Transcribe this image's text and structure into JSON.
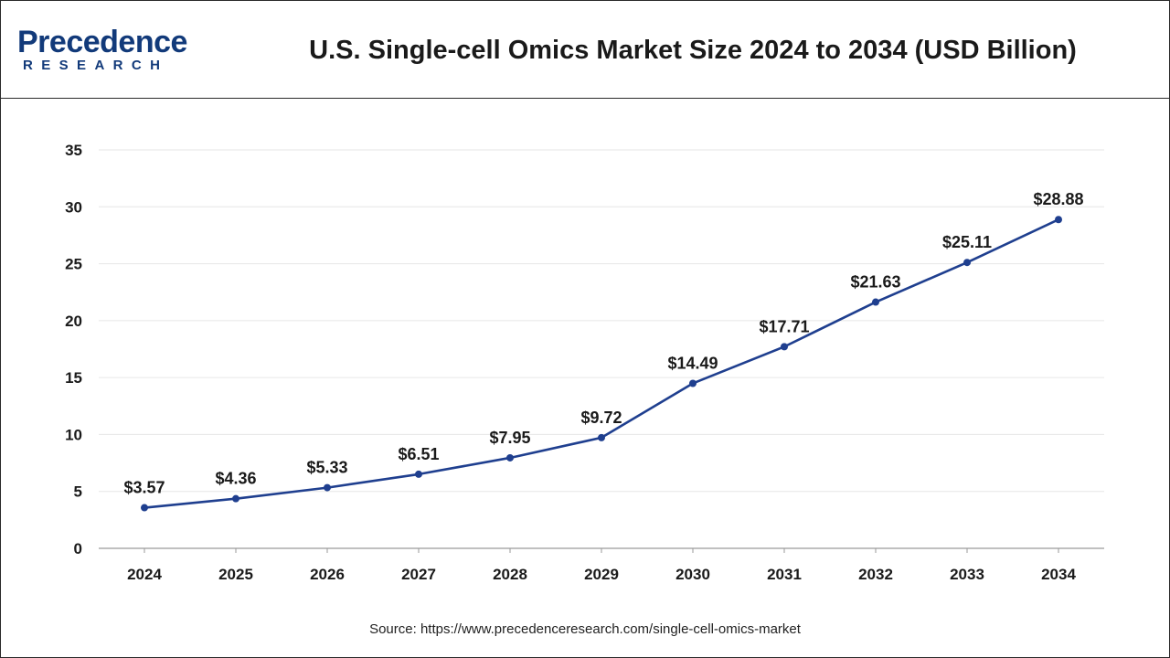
{
  "header": {
    "logo_word": "Precedence",
    "logo_sub": "RESEARCH",
    "title": "U.S. Single-cell Omics Market Size 2024 to 2034 (USD Billion)"
  },
  "source": "Source: https://www.precedenceresearch.com/single-cell-omics-market",
  "colors": {
    "line": "#1f3f8f",
    "brand": "#123a7a",
    "grid": "#e6e6e6",
    "axis": "#9a9a9a"
  },
  "chart_data": {
    "type": "line",
    "title": "U.S. Single-cell Omics Market Size 2024 to 2034 (USD Billion)",
    "xlabel": "",
    "ylabel": "",
    "x": [
      "2024",
      "2025",
      "2026",
      "2027",
      "2028",
      "2029",
      "2030",
      "2031",
      "2032",
      "2033",
      "2034"
    ],
    "series": [
      {
        "values": [
          3.57,
          4.36,
          5.33,
          6.51,
          7.95,
          9.72,
          14.49,
          17.71,
          21.63,
          25.11,
          28.88
        ],
        "labels": [
          "$3.57",
          "$4.36",
          "$5.33",
          "$6.51",
          "$7.95",
          "$9.72",
          "$14.49",
          "$17.71",
          "$21.63",
          "$25.11",
          "$28.88"
        ]
      }
    ],
    "ylim": [
      0,
      35
    ],
    "yticks": [
      "0",
      "5",
      "10",
      "15",
      "20",
      "25",
      "30",
      "35"
    ],
    "grid": true,
    "legend": "none"
  }
}
